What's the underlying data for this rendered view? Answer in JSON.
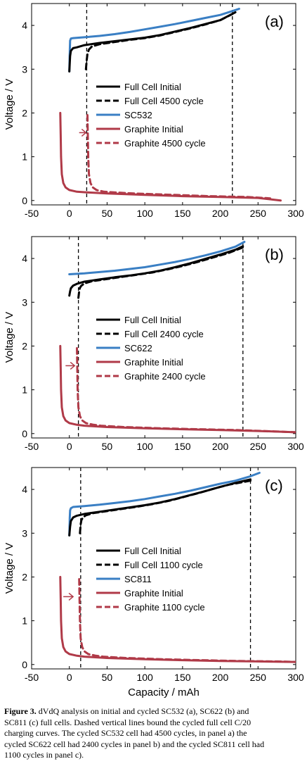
{
  "chart_data": [
    {
      "type": "line",
      "panel_label": "(a)",
      "xlabel": "",
      "ylabel": "Voltage / V",
      "xlim": [
        -50,
        300
      ],
      "ylim": [
        -0.1,
        4.5
      ],
      "xticks": [
        -50,
        0,
        50,
        100,
        150,
        200,
        250,
        300
      ],
      "yticks": [
        0,
        1,
        2,
        3,
        4
      ],
      "vlines": [
        23,
        216
      ],
      "arrow": {
        "from": [
          13,
          1.55
        ],
        "to": [
          22,
          1.55
        ]
      },
      "series": [
        {
          "name": "Full Cell Initial",
          "color": "#000000",
          "dash": false,
          "x": [
            0,
            1,
            2,
            5,
            10,
            20,
            40,
            60,
            80,
            100,
            120,
            140,
            160,
            180,
            200,
            220
          ],
          "y": [
            2.95,
            3.3,
            3.42,
            3.48,
            3.5,
            3.55,
            3.6,
            3.64,
            3.68,
            3.72,
            3.78,
            3.86,
            3.94,
            4.03,
            4.12,
            4.3
          ]
        },
        {
          "name": "Full Cell 4500 cycle",
          "color": "#000000",
          "dash": true,
          "x": [
            22,
            23,
            24,
            26,
            30,
            40,
            60,
            80,
            100,
            120,
            140,
            160,
            180,
            200,
            216
          ],
          "y": [
            3.0,
            3.2,
            3.35,
            3.45,
            3.52,
            3.57,
            3.62,
            3.67,
            3.71,
            3.77,
            3.85,
            3.93,
            4.02,
            4.12,
            4.26
          ]
        },
        {
          "name": "SC532",
          "color": "#3a7fc4",
          "dash": false,
          "x": [
            0,
            0.5,
            1,
            2,
            5,
            20,
            40,
            60,
            80,
            100,
            120,
            140,
            160,
            180,
            200,
            220,
            225
          ],
          "y": [
            2.95,
            3.4,
            3.65,
            3.7,
            3.71,
            3.73,
            3.76,
            3.8,
            3.85,
            3.91,
            3.97,
            4.03,
            4.1,
            4.17,
            4.24,
            4.35,
            4.38
          ]
        },
        {
          "name": "Graphite Initial",
          "color": "#b03a48",
          "dash": false,
          "x": [
            -12,
            -11.5,
            -11,
            -10,
            -8,
            -5,
            0,
            10,
            20,
            50,
            100,
            150,
            200,
            250,
            280
          ],
          "y": [
            2.0,
            1.5,
            1.0,
            0.6,
            0.4,
            0.3,
            0.24,
            0.2,
            0.19,
            0.16,
            0.13,
            0.1,
            0.08,
            0.06,
            0.0
          ]
        },
        {
          "name": "Graphite 4500 cycle",
          "color": "#b03a48",
          "dash": true,
          "x": [
            24,
            24.5,
            25,
            26,
            28,
            31,
            36,
            46,
            56,
            86,
            136,
            186,
            236,
            266
          ],
          "y": [
            1.95,
            1.5,
            1.0,
            0.6,
            0.4,
            0.3,
            0.24,
            0.2,
            0.19,
            0.16,
            0.13,
            0.1,
            0.08,
            0.05
          ]
        }
      ]
    },
    {
      "type": "line",
      "panel_label": "(b)",
      "xlabel": "",
      "ylabel": "Voltage / V",
      "xlim": [
        -50,
        300
      ],
      "ylim": [
        -0.1,
        4.5
      ],
      "xticks": [
        -50,
        0,
        50,
        100,
        150,
        200,
        250,
        300
      ],
      "yticks": [
        0,
        1,
        2,
        3,
        4
      ],
      "vlines": [
        12,
        230
      ],
      "arrow": {
        "from": [
          -5,
          1.55
        ],
        "to": [
          7,
          1.55
        ]
      },
      "series": [
        {
          "name": "Full Cell Initial",
          "color": "#000000",
          "dash": false,
          "x": [
            0,
            1,
            2,
            5,
            10,
            20,
            40,
            60,
            80,
            100,
            120,
            140,
            160,
            180,
            200,
            220,
            230
          ],
          "y": [
            3.15,
            3.25,
            3.32,
            3.38,
            3.42,
            3.47,
            3.52,
            3.57,
            3.61,
            3.66,
            3.72,
            3.8,
            3.89,
            3.99,
            4.09,
            4.2,
            4.28
          ]
        },
        {
          "name": "Full Cell 2400 cycle",
          "color": "#000000",
          "dash": true,
          "x": [
            12,
            13,
            14,
            16,
            20,
            30,
            50,
            70,
            90,
            110,
            130,
            150,
            170,
            190,
            210,
            230
          ],
          "y": [
            3.1,
            3.25,
            3.33,
            3.38,
            3.43,
            3.48,
            3.53,
            3.58,
            3.63,
            3.68,
            3.75,
            3.83,
            3.92,
            4.02,
            4.12,
            4.25
          ]
        },
        {
          "name": "SC622",
          "color": "#3a7fc4",
          "dash": false,
          "x": [
            0,
            20,
            40,
            60,
            80,
            100,
            120,
            140,
            160,
            180,
            200,
            220,
            232
          ],
          "y": [
            3.64,
            3.66,
            3.69,
            3.72,
            3.76,
            3.8,
            3.86,
            3.92,
            3.99,
            4.07,
            4.16,
            4.27,
            4.38
          ]
        },
        {
          "name": "Graphite Initial",
          "color": "#b03a48",
          "dash": false,
          "x": [
            -12,
            -11.5,
            -11,
            -10,
            -8,
            -5,
            0,
            10,
            20,
            50,
            100,
            150,
            200,
            250,
            300
          ],
          "y": [
            2.0,
            1.5,
            1.0,
            0.6,
            0.4,
            0.3,
            0.24,
            0.2,
            0.18,
            0.15,
            0.12,
            0.1,
            0.08,
            0.06,
            0.03
          ]
        },
        {
          "name": "Graphite 2400 cycle",
          "color": "#b03a48",
          "dash": true,
          "x": [
            10,
            10.5,
            11,
            12,
            14,
            17,
            22,
            32,
            42,
            72,
            122,
            172,
            222,
            272,
            300
          ],
          "y": [
            1.95,
            1.5,
            1.0,
            0.6,
            0.4,
            0.3,
            0.24,
            0.2,
            0.18,
            0.15,
            0.12,
            0.1,
            0.08,
            0.05,
            0.03
          ]
        }
      ]
    },
    {
      "type": "line",
      "panel_label": "(c)",
      "xlabel": "Capacity / mAh",
      "ylabel": "Voltage / V",
      "xlim": [
        -50,
        300
      ],
      "ylim": [
        -0.1,
        4.5
      ],
      "xticks": [
        -50,
        0,
        50,
        100,
        150,
        200,
        250,
        300
      ],
      "yticks": [
        0,
        1,
        2,
        3,
        4
      ],
      "vlines": [
        15,
        240
      ],
      "arrow": {
        "from": [
          -8,
          1.55
        ],
        "to": [
          5,
          1.55
        ]
      },
      "series": [
        {
          "name": "Full Cell Initial",
          "color": "#000000",
          "dash": false,
          "x": [
            0,
            1,
            2,
            5,
            10,
            20,
            40,
            60,
            80,
            100,
            120,
            140,
            160,
            180,
            200,
            220,
            240
          ],
          "y": [
            2.95,
            3.15,
            3.28,
            3.36,
            3.4,
            3.44,
            3.49,
            3.54,
            3.59,
            3.64,
            3.7,
            3.78,
            3.87,
            3.96,
            4.06,
            4.15,
            4.23
          ]
        },
        {
          "name": "Full Cell 1100 cycle",
          "color": "#000000",
          "dash": true,
          "x": [
            14,
            15,
            16,
            18,
            22,
            32,
            52,
            72,
            92,
            112,
            132,
            152,
            172,
            192,
            212,
            240
          ],
          "y": [
            3.0,
            3.2,
            3.3,
            3.36,
            3.41,
            3.46,
            3.51,
            3.56,
            3.61,
            3.67,
            3.74,
            3.83,
            3.92,
            4.02,
            4.11,
            4.2
          ]
        },
        {
          "name": "SC811",
          "color": "#3a7fc4",
          "dash": false,
          "x": [
            0,
            0.5,
            1,
            2,
            5,
            20,
            40,
            60,
            80,
            100,
            120,
            140,
            160,
            180,
            200,
            220,
            240,
            252
          ],
          "y": [
            2.95,
            3.35,
            3.52,
            3.57,
            3.6,
            3.62,
            3.65,
            3.69,
            3.73,
            3.78,
            3.84,
            3.9,
            3.97,
            4.05,
            4.13,
            4.2,
            4.3,
            4.38
          ]
        },
        {
          "name": "Graphite Initial",
          "color": "#b03a48",
          "dash": false,
          "x": [
            -12,
            -11.5,
            -11,
            -10,
            -8,
            -5,
            0,
            10,
            20,
            50,
            100,
            150,
            200,
            250,
            300
          ],
          "y": [
            2.0,
            1.5,
            1.0,
            0.6,
            0.4,
            0.3,
            0.24,
            0.2,
            0.18,
            0.15,
            0.12,
            0.1,
            0.08,
            0.07,
            0.06
          ]
        },
        {
          "name": "Graphite 1100 cycle",
          "color": "#b03a48",
          "dash": true,
          "x": [
            13,
            13.5,
            14,
            15,
            17,
            20,
            25,
            35,
            45,
            75,
            125,
            175,
            225,
            275,
            300
          ],
          "y": [
            1.95,
            1.5,
            1.0,
            0.6,
            0.4,
            0.3,
            0.24,
            0.2,
            0.18,
            0.15,
            0.12,
            0.1,
            0.08,
            0.07,
            0.06
          ]
        }
      ]
    }
  ],
  "caption": {
    "label": "Figure 3.",
    "lines": [
      " dVdQ analysis on initial and cycled SC532 (a), SC622 (b) and",
      "SC811 (c) full cells. Dashed vertical lines bound the cycled full cell C/20",
      "charging curves. The cycled SC532 cell had 4500 cycles, in panel a) the",
      "cycled SC622 cell had 2400 cycles in panel b) and the cycled SC811 cell had",
      "1100 cycles in panel c)."
    ]
  }
}
